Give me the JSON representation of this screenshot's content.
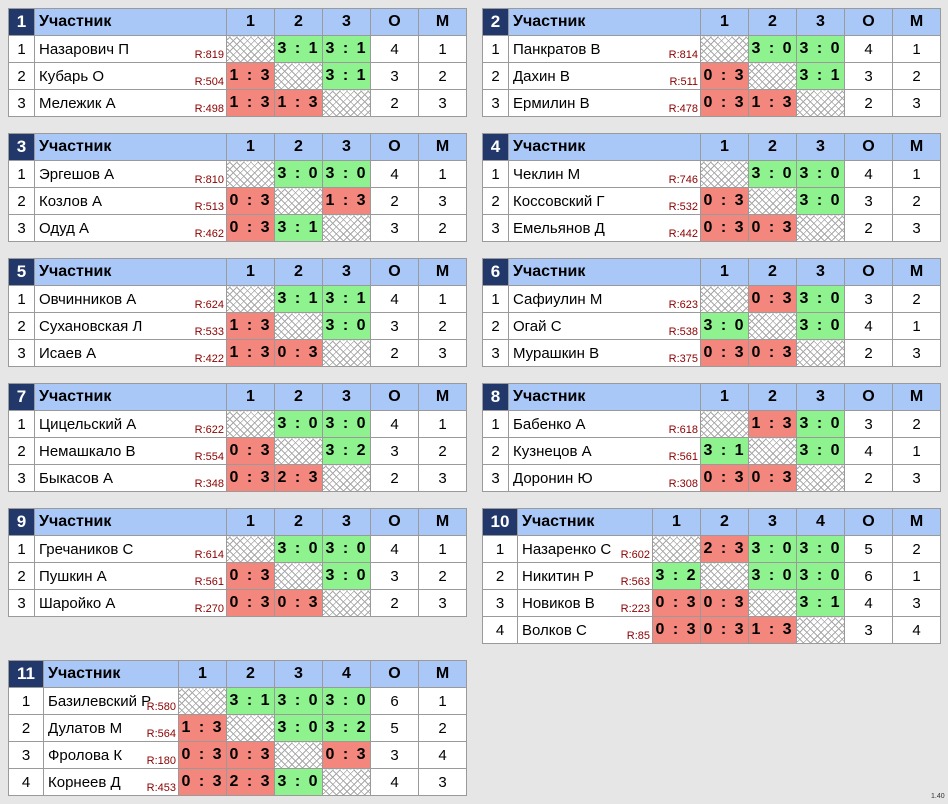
{
  "header_label": "Участник",
  "cols": [
    "1",
    "2",
    "3",
    "4"
  ],
  "points_label": "О",
  "place_label": "М",
  "groups": [
    {
      "num": "1",
      "players": [
        {
          "pos": "1",
          "name": "Назарович П",
          "rating": "R:819",
          "cells": [
            "x",
            "3 : 1",
            "3 : 1"
          ],
          "points": "4",
          "place": "1"
        },
        {
          "pos": "2",
          "name": "Кубарь О",
          "rating": "R:504",
          "cells": [
            "1 : 3",
            "x",
            "3 : 1"
          ],
          "points": "3",
          "place": "2"
        },
        {
          "pos": "3",
          "name": "Мележик А",
          "rating": "R:498",
          "cells": [
            "1 : 3",
            "1 : 3",
            "x"
          ],
          "points": "2",
          "place": "3"
        }
      ]
    },
    {
      "num": "2",
      "players": [
        {
          "pos": "1",
          "name": "Панкратов В",
          "rating": "R:814",
          "cells": [
            "x",
            "3 : 0",
            "3 : 0"
          ],
          "points": "4",
          "place": "1"
        },
        {
          "pos": "2",
          "name": "Дахин В",
          "rating": "R:511",
          "cells": [
            "0 : 3",
            "x",
            "3 : 1"
          ],
          "points": "3",
          "place": "2"
        },
        {
          "pos": "3",
          "name": "Ермилин В",
          "rating": "R:478",
          "cells": [
            "0 : 3",
            "1 : 3",
            "x"
          ],
          "points": "2",
          "place": "3"
        }
      ]
    },
    {
      "num": "3",
      "players": [
        {
          "pos": "1",
          "name": "Эргешов А",
          "rating": "R:810",
          "cells": [
            "x",
            "3 : 0",
            "3 : 0"
          ],
          "points": "4",
          "place": "1"
        },
        {
          "pos": "2",
          "name": "Козлов А",
          "rating": "R:513",
          "cells": [
            "0 : 3",
            "x",
            "1 : 3"
          ],
          "points": "2",
          "place": "3"
        },
        {
          "pos": "3",
          "name": "Одуд А",
          "rating": "R:462",
          "cells": [
            "0 : 3",
            "3 : 1",
            "x"
          ],
          "points": "3",
          "place": "2"
        }
      ]
    },
    {
      "num": "4",
      "players": [
        {
          "pos": "1",
          "name": "Чеклин М",
          "rating": "R:746",
          "cells": [
            "x",
            "3 : 0",
            "3 : 0"
          ],
          "points": "4",
          "place": "1"
        },
        {
          "pos": "2",
          "name": "Коссовский Г",
          "rating": "R:532",
          "cells": [
            "0 : 3",
            "x",
            "3 : 0"
          ],
          "points": "3",
          "place": "2"
        },
        {
          "pos": "3",
          "name": "Емельянов Д",
          "rating": "R:442",
          "cells": [
            "0 : 3",
            "0 : 3",
            "x"
          ],
          "points": "2",
          "place": "3"
        }
      ]
    },
    {
      "num": "5",
      "players": [
        {
          "pos": "1",
          "name": "Овчинников А",
          "rating": "R:624",
          "cells": [
            "x",
            "3 : 1",
            "3 : 1"
          ],
          "points": "4",
          "place": "1"
        },
        {
          "pos": "2",
          "name": "Сухановская Л",
          "rating": "R:533",
          "cells": [
            "1 : 3",
            "x",
            "3 : 0"
          ],
          "points": "3",
          "place": "2"
        },
        {
          "pos": "3",
          "name": "Исаев А",
          "rating": "R:422",
          "cells": [
            "1 : 3",
            "0 : 3",
            "x"
          ],
          "points": "2",
          "place": "3"
        }
      ]
    },
    {
      "num": "6",
      "players": [
        {
          "pos": "1",
          "name": "Сафиулин М",
          "rating": "R:623",
          "cells": [
            "x",
            "0 : 3",
            "3 : 0"
          ],
          "points": "3",
          "place": "2"
        },
        {
          "pos": "2",
          "name": "Огай С",
          "rating": "R:538",
          "cells": [
            "3 : 0",
            "x",
            "3 : 0"
          ],
          "points": "4",
          "place": "1"
        },
        {
          "pos": "3",
          "name": "Мурашкин В",
          "rating": "R:375",
          "cells": [
            "0 : 3",
            "0 : 3",
            "x"
          ],
          "points": "2",
          "place": "3"
        }
      ]
    },
    {
      "num": "7",
      "players": [
        {
          "pos": "1",
          "name": "Цицельский А",
          "rating": "R:622",
          "cells": [
            "x",
            "3 : 0",
            "3 : 0"
          ],
          "points": "4",
          "place": "1"
        },
        {
          "pos": "2",
          "name": "Немашкало В",
          "rating": "R:554",
          "cells": [
            "0 : 3",
            "x",
            "3 : 2"
          ],
          "points": "3",
          "place": "2"
        },
        {
          "pos": "3",
          "name": "Быкасов А",
          "rating": "R:348",
          "cells": [
            "0 : 3",
            "2 : 3",
            "x"
          ],
          "points": "2",
          "place": "3"
        }
      ]
    },
    {
      "num": "8",
      "players": [
        {
          "pos": "1",
          "name": "Бабенко А",
          "rating": "R:618",
          "cells": [
            "x",
            "1 : 3",
            "3 : 0"
          ],
          "points": "3",
          "place": "2"
        },
        {
          "pos": "2",
          "name": "Кузнецов А",
          "rating": "R:561",
          "cells": [
            "3 : 1",
            "x",
            "3 : 0"
          ],
          "points": "4",
          "place": "1"
        },
        {
          "pos": "3",
          "name": "Доронин Ю",
          "rating": "R:308",
          "cells": [
            "0 : 3",
            "0 : 3",
            "x"
          ],
          "points": "2",
          "place": "3"
        }
      ]
    },
    {
      "num": "9",
      "players": [
        {
          "pos": "1",
          "name": "Гречаников С",
          "rating": "R:614",
          "cells": [
            "x",
            "3 : 0",
            "3 : 0"
          ],
          "points": "4",
          "place": "1"
        },
        {
          "pos": "2",
          "name": "Пушкин А",
          "rating": "R:561",
          "cells": [
            "0 : 3",
            "x",
            "3 : 0"
          ],
          "points": "3",
          "place": "2"
        },
        {
          "pos": "3",
          "name": "Шаройко А",
          "rating": "R:270",
          "cells": [
            "0 : 3",
            "0 : 3",
            "x"
          ],
          "points": "2",
          "place": "3"
        }
      ]
    },
    {
      "num": "10",
      "players": [
        {
          "pos": "1",
          "name": "Назаренко С",
          "rating": "R:602",
          "cells": [
            "x",
            "2 : 3",
            "3 : 0",
            "3 : 0"
          ],
          "points": "5",
          "place": "2"
        },
        {
          "pos": "2",
          "name": "Никитин Р",
          "rating": "R:563",
          "cells": [
            "3 : 2",
            "x",
            "3 : 0",
            "3 : 0"
          ],
          "points": "6",
          "place": "1"
        },
        {
          "pos": "3",
          "name": "Новиков В",
          "rating": "R:223",
          "cells": [
            "0 : 3",
            "0 : 3",
            "x",
            "3 : 1"
          ],
          "points": "4",
          "place": "3"
        },
        {
          "pos": "4",
          "name": "Волков С",
          "rating": "R:85",
          "cells": [
            "0 : 3",
            "0 : 3",
            "1 : 3",
            "x"
          ],
          "points": "3",
          "place": "4"
        }
      ]
    },
    {
      "num": "11",
      "players": [
        {
          "pos": "1",
          "name": "Базилевский Р",
          "rating": "R:580",
          "cells": [
            "x",
            "3 : 1",
            "3 : 0",
            "3 : 0"
          ],
          "points": "6",
          "place": "1"
        },
        {
          "pos": "2",
          "name": "Дулатов М",
          "rating": "R:564",
          "cells": [
            "1 : 3",
            "x",
            "3 : 0",
            "3 : 2"
          ],
          "points": "5",
          "place": "2"
        },
        {
          "pos": "3",
          "name": "Фролова К",
          "rating": "R:180",
          "cells": [
            "0 : 3",
            "0 : 3",
            "x",
            "0 : 3"
          ],
          "points": "3",
          "place": "4"
        },
        {
          "pos": "4",
          "name": "Корнеев Д",
          "rating": "R:453",
          "cells": [
            "0 : 3",
            "2 : 3",
            "3 : 0",
            "x"
          ],
          "points": "4",
          "place": "3"
        }
      ]
    }
  ],
  "version": "1.40",
  "colors": {
    "header": "#a9c8f7",
    "group_number_bg": "#23386a",
    "win": "#8ef28e",
    "loss": "#f3877d",
    "rating": "#8b0000"
  }
}
